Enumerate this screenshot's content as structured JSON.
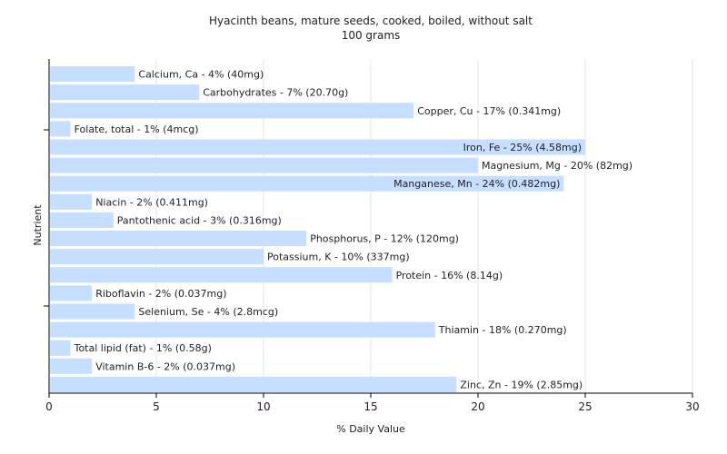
{
  "chart_data": {
    "type": "bar",
    "orientation": "horizontal",
    "title": "Hyacinth beans, mature seeds, cooked, boiled, without salt",
    "subtitle": "100 grams",
    "xlabel": "% Daily Value",
    "ylabel": "Nutrient",
    "xlim": [
      0,
      30
    ],
    "xticks": [
      0,
      5,
      10,
      15,
      20,
      25,
      30
    ],
    "grid": true,
    "bar_color": "#c6deff",
    "categories": [
      "Calcium, Ca",
      "Carbohydrates",
      "Copper, Cu",
      "Folate, total",
      "Iron, Fe",
      "Magnesium, Mg",
      "Manganese, Mn",
      "Niacin",
      "Pantothenic acid",
      "Phosphorus, P",
      "Potassium, K",
      "Protein",
      "Riboflavin",
      "Selenium, Se",
      "Thiamin",
      "Total lipid (fat)",
      "Vitamin B-6",
      "Zinc, Zn"
    ],
    "values": [
      4,
      7,
      17,
      1,
      25,
      20,
      24,
      2,
      3,
      12,
      10,
      16,
      2,
      4,
      18,
      1,
      2,
      19
    ],
    "labels": [
      "Calcium, Ca - 4% (40mg)",
      "Carbohydrates - 7% (20.70g)",
      "Copper, Cu - 17% (0.341mg)",
      "Folate, total - 1% (4mcg)",
      "Iron, Fe - 25% (4.58mg)",
      "Magnesium, Mg - 20% (82mg)",
      "Manganese, Mn - 24% (0.482mg)",
      "Niacin - 2% (0.411mg)",
      "Pantothenic acid - 3% (0.316mg)",
      "Phosphorus, P - 12% (120mg)",
      "Potassium, K - 10% (337mg)",
      "Protein - 16% (8.14g)",
      "Riboflavin - 2% (0.037mg)",
      "Selenium, Se - 4% (2.8mcg)",
      "Thiamin - 18% (0.270mg)",
      "Total lipid (fat) - 1% (0.58g)",
      "Vitamin B-6 - 2% (0.037mg)",
      "Zinc, Zn - 19% (2.85mg)"
    ]
  }
}
